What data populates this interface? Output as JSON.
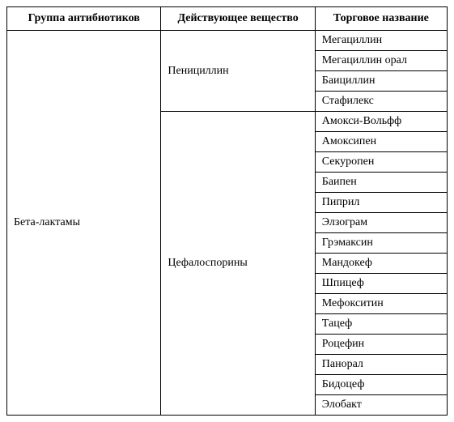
{
  "table": {
    "headers": [
      "Группа антибиотиков",
      "Действующее вещество",
      "Торговое название"
    ],
    "group": "Бета-лактамы",
    "substances": [
      {
        "name": "Пенициллин",
        "trade_names": [
          "Мегациллин",
          "Мегациллин орал",
          "Баициллин",
          "Стафилекс"
        ]
      },
      {
        "name": "Цефалоспорины",
        "trade_names": [
          "Амокси-Вольфф",
          "Амоксипен",
          "Секуропен",
          "Баипен",
          "Пиприл",
          "Элзограм",
          "Грэмаксин",
          "Мандокеф",
          "Шпицеф",
          "Мефокситин",
          "Тацеф",
          "Роцефин",
          "Панорал",
          "Бидоцеф",
          "Элобакт"
        ]
      }
    ],
    "style": {
      "border_color": "#000000",
      "background_color": "#ffffff",
      "font_family": "Times New Roman",
      "header_fontsize": 14,
      "cell_fontsize": 14,
      "header_fontweight": "bold",
      "cell_align": "left",
      "header_align": "center",
      "col_widths_pct": [
        35,
        35,
        30
      ]
    }
  }
}
